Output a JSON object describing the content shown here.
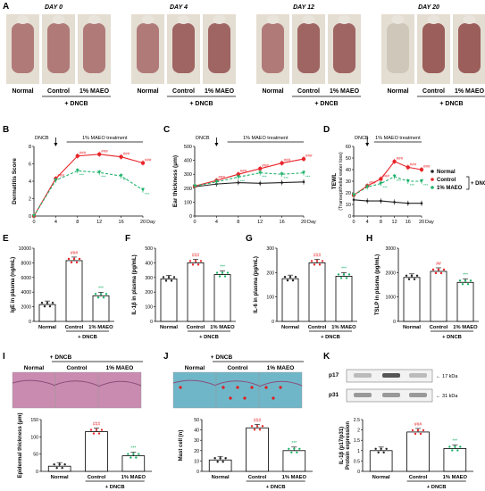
{
  "panel_letters": [
    "A",
    "B",
    "C",
    "D",
    "E",
    "F",
    "G",
    "H",
    "I",
    "J",
    "K"
  ],
  "photo_panel": {
    "days": [
      "DAY 0",
      "DAY 4",
      "DAY 12",
      "DAY 20"
    ],
    "groups": [
      "Normal",
      "Control",
      "1% MAEO"
    ],
    "dncb_label": "+ DNCB"
  },
  "common": {
    "dncb": "DNCB",
    "treatment": "1% MAEO treatment",
    "plus_dncb": "+ DNCB",
    "day_unit": "Day"
  },
  "colors": {
    "normal": "#222222",
    "control": "#e8262b",
    "maeo": "#1fb36b",
    "bar_outline": "#000000",
    "skin_pink": "#a86e6e",
    "he_stain": "#c98bb0",
    "toluidine": "#6fb6c8"
  },
  "chart_data": [
    {
      "id": "B",
      "type": "line",
      "ylabel": "Dermatitis Score",
      "x": [
        0,
        4,
        8,
        12,
        16,
        20
      ],
      "xlim": [
        0,
        20
      ],
      "ylim": [
        0,
        8
      ],
      "yticks": [
        0,
        2,
        4,
        6,
        8
      ],
      "series": [
        {
          "name": "Control",
          "values": [
            0,
            4.3,
            6.9,
            7.1,
            6.8,
            6.1
          ]
        },
        {
          "name": "1% MAEO",
          "values": [
            0,
            4.1,
            5.2,
            5.0,
            4.6,
            3.0
          ]
        }
      ],
      "annotations": [
        "###",
        "###",
        "###",
        "###",
        "###",
        "***",
        "***",
        "***"
      ]
    },
    {
      "id": "C",
      "type": "line",
      "ylabel": "Ear thickness (μm)",
      "x": [
        0,
        4,
        8,
        12,
        16,
        20
      ],
      "xlim": [
        0,
        20
      ],
      "ylim": [
        0,
        500
      ],
      "yticks": [
        0,
        100,
        200,
        300,
        400,
        500
      ],
      "series": [
        {
          "name": "Normal",
          "values": [
            210,
            230,
            240,
            235,
            240,
            245
          ]
        },
        {
          "name": "Control",
          "values": [
            215,
            255,
            300,
            340,
            380,
            410
          ]
        },
        {
          "name": "1% MAEO",
          "values": [
            215,
            245,
            280,
            310,
            300,
            310
          ]
        }
      ],
      "annotations": [
        "###",
        "###",
        "###",
        "###",
        "###",
        "***",
        "***",
        "***"
      ]
    },
    {
      "id": "D",
      "type": "line",
      "ylabel": "TEWL",
      "ylabel2": "(Transepithelial water loss)",
      "x": [
        0,
        4,
        8,
        12,
        16,
        20
      ],
      "xlim": [
        0,
        20
      ],
      "ylim": [
        0,
        60
      ],
      "yticks": [
        0,
        10,
        20,
        30,
        40,
        50,
        60
      ],
      "series": [
        {
          "name": "Normal",
          "values": [
            14,
            13,
            13,
            12,
            11,
            11
          ]
        },
        {
          "name": "Control",
          "values": [
            18,
            26,
            32,
            47,
            42,
            40
          ]
        },
        {
          "name": "1% MAEO",
          "values": [
            18,
            25,
            28,
            34,
            30,
            30
          ]
        }
      ],
      "annotations": [
        "###",
        "###",
        "###",
        "###",
        "###",
        "***",
        "***",
        "***"
      ]
    },
    {
      "id": "E",
      "type": "bar",
      "ylabel": "IgE in plasma (ng/mL)",
      "categories": [
        "Normal",
        "Control",
        "1% MAEO"
      ],
      "values": [
        2300,
        8300,
        3500
      ],
      "ylim": [
        0,
        10000
      ],
      "yticks": [
        0,
        2000,
        4000,
        6000,
        8000,
        10000
      ],
      "annotations": [
        "",
        "###",
        "***"
      ]
    },
    {
      "id": "F",
      "type": "bar",
      "ylabel": "IL-1β in plasma (pg/mL)",
      "categories": [
        "Normal",
        "Control",
        "1% MAEO"
      ],
      "values": [
        290,
        400,
        320
      ],
      "ylim": [
        0,
        500
      ],
      "yticks": [
        0,
        100,
        200,
        300,
        400,
        500
      ],
      "annotations": [
        "",
        "###",
        "***"
      ]
    },
    {
      "id": "G",
      "type": "bar",
      "ylabel": "IL-6 in plasma (pg/mL)",
      "categories": [
        "Normal",
        "Control",
        "1% MAEO"
      ],
      "values": [
        175,
        240,
        185
      ],
      "ylim": [
        0,
        300
      ],
      "yticks": [
        0,
        100,
        200,
        300
      ],
      "annotations": [
        "",
        "###",
        "***"
      ]
    },
    {
      "id": "H",
      "type": "bar",
      "ylabel": "TSLP in plasma (pg/mL)",
      "categories": [
        "Normal",
        "Control",
        "1% MAEO"
      ],
      "values": [
        1800,
        2050,
        1600
      ],
      "ylim": [
        0,
        3000
      ],
      "yticks": [
        0,
        1000,
        2000,
        3000
      ],
      "annotations": [
        "",
        "##",
        "***"
      ]
    },
    {
      "id": "I",
      "type": "bar",
      "ylabel": "Epidermal thickness (μm)",
      "categories": [
        "Normal",
        "Control",
        "1% MAEO"
      ],
      "values": [
        15,
        115,
        45
      ],
      "ylim": [
        0,
        150
      ],
      "yticks": [
        0,
        50,
        100,
        150
      ],
      "annotations": [
        "",
        "###",
        "***"
      ]
    },
    {
      "id": "J",
      "type": "bar",
      "ylabel": "Mast cell (n)",
      "categories": [
        "Normal",
        "Control",
        "1% MAEO"
      ],
      "values": [
        11,
        42,
        20
      ],
      "ylim": [
        0,
        50
      ],
      "yticks": [
        0,
        10,
        20,
        30,
        40,
        50
      ],
      "annotations": [
        "",
        "###",
        "***"
      ]
    },
    {
      "id": "K",
      "type": "bar",
      "ylabel": "IL-1β (p17/p31)",
      "ylabel2": "Protein expression",
      "categories": [
        "Normal",
        "Control",
        "1% MAEO"
      ],
      "values": [
        1.0,
        1.9,
        1.1
      ],
      "ylim": [
        0,
        2.5
      ],
      "yticks": [
        0.0,
        0.5,
        1.0,
        1.5,
        2.0,
        2.5
      ],
      "annotations": [
        "",
        "###",
        "***"
      ]
    }
  ],
  "western": {
    "bands": [
      {
        "name": "p17",
        "kda": "← 17 kDa"
      },
      {
        "name": "p31",
        "kda": "← 31 kDa"
      }
    ]
  }
}
